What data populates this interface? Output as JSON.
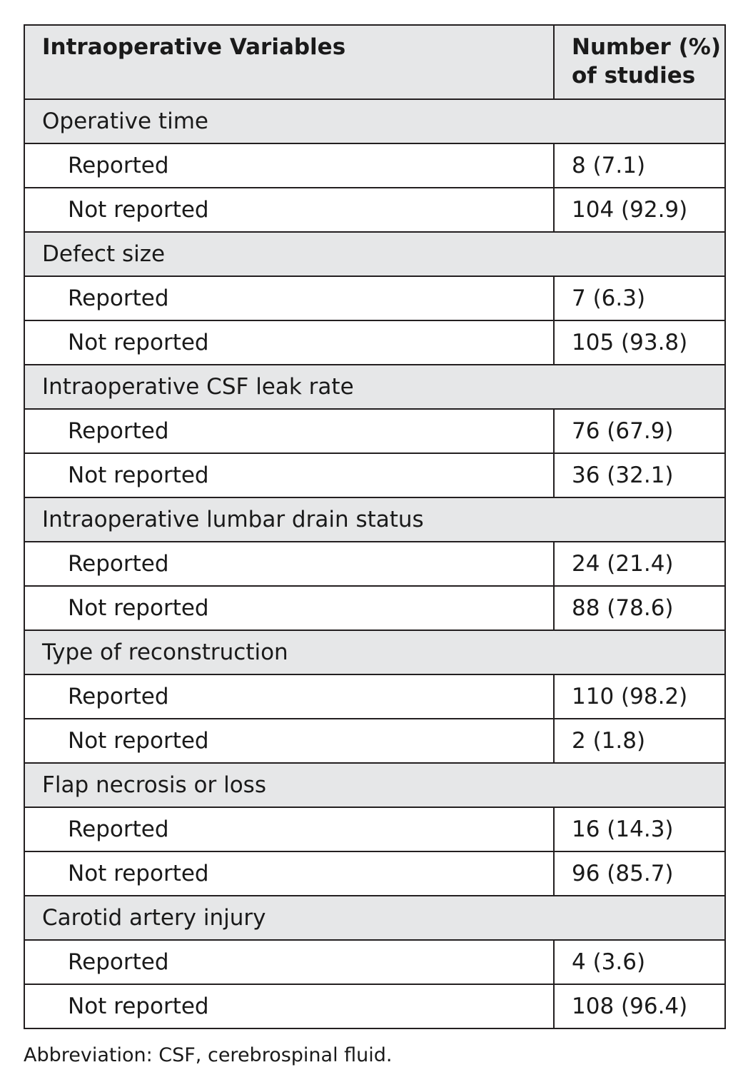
{
  "table": {
    "header": {
      "col1": "Intraoperative Variables",
      "col2": "Number (%) of studies"
    },
    "groups": [
      {
        "label": "Operative time",
        "rows": [
          {
            "label": "Reported",
            "value": "8 (7.1)"
          },
          {
            "label": "Not reported",
            "value": "104 (92.9)"
          }
        ]
      },
      {
        "label": "Defect size",
        "rows": [
          {
            "label": "Reported",
            "value": "7 (6.3)"
          },
          {
            "label": "Not reported",
            "value": "105 (93.8)"
          }
        ]
      },
      {
        "label": "Intraoperative CSF leak rate",
        "rows": [
          {
            "label": "Reported",
            "value": "76 (67.9)"
          },
          {
            "label": "Not reported",
            "value": "36 (32.1)"
          }
        ]
      },
      {
        "label": "Intraoperative lumbar drain status",
        "rows": [
          {
            "label": "Reported",
            "value": "24 (21.4)"
          },
          {
            "label": "Not reported",
            "value": "88 (78.6)"
          }
        ]
      },
      {
        "label": "Type of reconstruction",
        "rows": [
          {
            "label": "Reported",
            "value": "110 (98.2)"
          },
          {
            "label": "Not reported",
            "value": "2 (1.8)"
          }
        ]
      },
      {
        "label": "Flap necrosis or loss",
        "rows": [
          {
            "label": "Reported",
            "value": "16 (14.3)"
          },
          {
            "label": "Not reported",
            "value": "96 (85.7)"
          }
        ]
      },
      {
        "label": "Carotid artery injury",
        "rows": [
          {
            "label": "Reported",
            "value": "4 (3.6)"
          },
          {
            "label": "Not reported",
            "value": "108 (96.4)"
          }
        ]
      }
    ]
  },
  "footnote": "Abbreviation: CSF, cerebrospinal fluid.",
  "colors": {
    "header_bg": "#e6e7e8",
    "border": "#231f20",
    "text": "#1a1a1a"
  }
}
